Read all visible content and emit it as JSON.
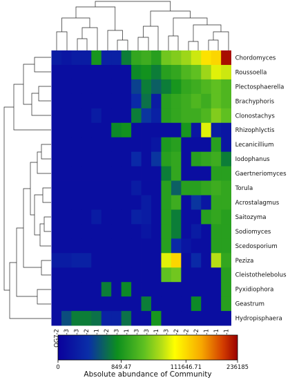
{
  "chart_data": {
    "type": "heatmap",
    "columns": [
      "QG7-2",
      "QG7-3",
      "QG5-3",
      "QG5-2",
      "QG7-1",
      "QG9-2",
      "QG9-3",
      "QG9-1",
      "A9-3",
      "A5-3",
      "QG5-1",
      "A7-3",
      "A7-2",
      "A9-2",
      "A5-2",
      "A9-1",
      "A7-1",
      "A5-1"
    ],
    "rows": [
      "Chordomyces",
      "Roussoella",
      "Plectosphaerella",
      "Brachyphoris",
      "Clonostachys",
      "Rhizophlyctis",
      "Lecanicillium",
      "Iodophanus",
      "Gaertneriomyces",
      "Torula",
      "Acrostalagmus",
      "Saitozyma",
      "Sodiomyces",
      "Scedosporium",
      "Peziza",
      "Cleistothelebolus",
      "Pyxidiophora",
      "Geastrum",
      "Hydropisphaera"
    ],
    "values_level": [
      [
        0.1,
        0.08,
        0.1,
        0.1,
        0.35,
        0.12,
        0.12,
        0.3,
        0.4,
        0.42,
        0.38,
        0.5,
        0.52,
        0.55,
        0.6,
        0.7,
        0.72,
        0.98
      ],
      [
        0.05,
        0.05,
        0.05,
        0.05,
        0.05,
        0.05,
        0.05,
        0.05,
        0.32,
        0.34,
        0.3,
        0.38,
        0.4,
        0.45,
        0.48,
        0.55,
        0.62,
        0.6
      ],
      [
        0.05,
        0.05,
        0.05,
        0.05,
        0.05,
        0.05,
        0.05,
        0.05,
        0.2,
        0.3,
        0.25,
        0.3,
        0.35,
        0.4,
        0.42,
        0.45,
        0.48,
        0.45
      ],
      [
        0.05,
        0.05,
        0.05,
        0.05,
        0.05,
        0.05,
        0.05,
        0.05,
        0.15,
        0.28,
        0.1,
        0.38,
        0.4,
        0.42,
        0.45,
        0.42,
        0.48,
        0.45
      ],
      [
        0.05,
        0.05,
        0.05,
        0.05,
        0.1,
        0.05,
        0.05,
        0.05,
        0.3,
        0.18,
        0.12,
        0.38,
        0.4,
        0.42,
        0.42,
        0.45,
        0.52,
        0.48
      ],
      [
        0.05,
        0.05,
        0.05,
        0.05,
        0.05,
        0.05,
        0.32,
        0.34,
        0.05,
        0.05,
        0.05,
        0.05,
        0.05,
        0.35,
        0.08,
        0.62,
        0.1,
        0.08
      ],
      [
        0.05,
        0.05,
        0.05,
        0.05,
        0.05,
        0.05,
        0.05,
        0.05,
        0.05,
        0.05,
        0.08,
        0.36,
        0.38,
        0.05,
        0.05,
        0.05,
        0.38,
        0.08
      ],
      [
        0.05,
        0.05,
        0.05,
        0.05,
        0.05,
        0.05,
        0.05,
        0.05,
        0.15,
        0.05,
        0.18,
        0.38,
        0.4,
        0.05,
        0.38,
        0.4,
        0.42,
        0.3
      ],
      [
        0.05,
        0.05,
        0.05,
        0.05,
        0.05,
        0.05,
        0.05,
        0.05,
        0.05,
        0.05,
        0.05,
        0.3,
        0.4,
        0.05,
        0.05,
        0.05,
        0.38,
        0.38
      ],
      [
        0.05,
        0.05,
        0.05,
        0.05,
        0.05,
        0.05,
        0.05,
        0.05,
        0.1,
        0.05,
        0.05,
        0.38,
        0.25,
        0.38,
        0.38,
        0.4,
        0.42,
        0.4
      ],
      [
        0.05,
        0.05,
        0.05,
        0.05,
        0.05,
        0.05,
        0.05,
        0.05,
        0.05,
        0.1,
        0.05,
        0.38,
        0.42,
        0.05,
        0.18,
        0.08,
        0.4,
        0.4
      ],
      [
        0.05,
        0.05,
        0.05,
        0.05,
        0.1,
        0.05,
        0.05,
        0.05,
        0.12,
        0.1,
        0.05,
        0.38,
        0.3,
        0.05,
        0.05,
        0.38,
        0.4,
        0.38
      ],
      [
        0.05,
        0.05,
        0.05,
        0.05,
        0.05,
        0.05,
        0.05,
        0.05,
        0.05,
        0.08,
        0.05,
        0.38,
        0.3,
        0.05,
        0.1,
        0.05,
        0.38,
        0.38
      ],
      [
        0.05,
        0.05,
        0.05,
        0.05,
        0.05,
        0.05,
        0.05,
        0.05,
        0.05,
        0.05,
        0.05,
        0.38,
        0.15,
        0.08,
        0.05,
        0.05,
        0.38,
        0.38
      ],
      [
        0.1,
        0.1,
        0.12,
        0.12,
        0.05,
        0.05,
        0.05,
        0.05,
        0.05,
        0.05,
        0.05,
        0.62,
        0.72,
        0.05,
        0.15,
        0.05,
        0.58,
        0.4
      ],
      [
        0.05,
        0.05,
        0.05,
        0.05,
        0.05,
        0.05,
        0.05,
        0.05,
        0.05,
        0.05,
        0.05,
        0.48,
        0.5,
        0.05,
        0.05,
        0.05,
        0.05,
        0.38
      ],
      [
        0.05,
        0.05,
        0.05,
        0.05,
        0.05,
        0.3,
        0.05,
        0.32,
        0.05,
        0.05,
        0.05,
        0.05,
        0.05,
        0.05,
        0.05,
        0.05,
        0.05,
        0.38
      ],
      [
        0.05,
        0.05,
        0.05,
        0.05,
        0.05,
        0.05,
        0.05,
        0.05,
        0.05,
        0.3,
        0.05,
        0.05,
        0.05,
        0.05,
        0.32,
        0.05,
        0.05,
        0.38
      ],
      [
        0.05,
        0.22,
        0.3,
        0.3,
        0.28,
        0.12,
        0.12,
        0.28,
        0.05,
        0.05,
        0.35,
        0.05,
        0.05,
        0.05,
        0.05,
        0.05,
        0.05,
        0.05
      ]
    ],
    "colorbar": {
      "label": "Absolute abundance of Community",
      "ticks": [
        "0",
        "849.47",
        "111646.71",
        "236185"
      ],
      "tick_positions": [
        0,
        0.3525,
        0.7125,
        1.0
      ],
      "stops": [
        {
          "offset": 0,
          "color": "#0a009c"
        },
        {
          "offset": 0.17,
          "color": "#0a2fa8"
        },
        {
          "offset": 0.33,
          "color": "#0d8f1e"
        },
        {
          "offset": 0.48,
          "color": "#5fc021"
        },
        {
          "offset": 0.58,
          "color": "#b7df16"
        },
        {
          "offset": 0.65,
          "color": "#ffff00"
        },
        {
          "offset": 0.8,
          "color": "#f7a700"
        },
        {
          "offset": 0.92,
          "color": "#d23c00"
        },
        {
          "offset": 1.0,
          "color": "#9a0000"
        }
      ]
    }
  }
}
